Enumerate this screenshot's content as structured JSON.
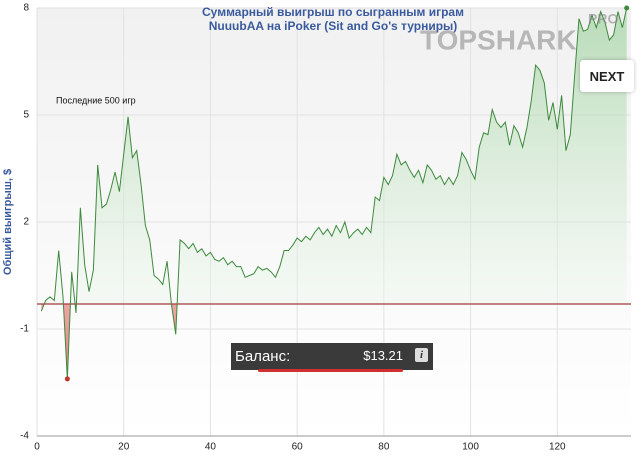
{
  "chart_data": {
    "type": "area",
    "title": "Суммарный выигрыш по сыгранным играм",
    "subtitle": "NuuubAA на iPoker (Sit and Go's турниры)",
    "y_label": "Общий выигрыш, $",
    "annotation": "Последние 500 игр",
    "x": [
      1,
      2,
      3,
      4,
      5,
      6,
      7,
      8,
      9,
      10,
      11,
      12,
      13,
      14,
      15,
      16,
      17,
      18,
      19,
      20,
      21,
      22,
      23,
      24,
      25,
      26,
      27,
      28,
      29,
      30,
      31,
      32,
      33,
      34,
      35,
      36,
      37,
      38,
      39,
      40,
      41,
      42,
      43,
      44,
      45,
      46,
      47,
      48,
      49,
      50,
      51,
      52,
      53,
      54,
      55,
      56,
      57,
      58,
      59,
      60,
      61,
      62,
      63,
      64,
      65,
      66,
      67,
      68,
      69,
      70,
      71,
      72,
      73,
      74,
      75,
      76,
      77,
      78,
      79,
      80,
      81,
      82,
      83,
      84,
      85,
      86,
      87,
      88,
      89,
      90,
      91,
      92,
      93,
      94,
      95,
      96,
      97,
      98,
      99,
      100,
      101,
      102,
      103,
      104,
      105,
      106,
      107,
      108,
      109,
      110,
      111,
      112,
      113,
      114,
      115,
      116,
      117,
      118,
      119,
      120,
      121,
      122,
      123,
      124,
      125,
      126,
      127,
      128,
      129,
      130,
      131,
      132,
      133,
      134,
      135,
      136
    ],
    "values": [
      -0.5,
      -0.2,
      -0.1,
      -0.2,
      1.2,
      -0.1,
      -2.4,
      0.6,
      -0.55,
      2.4,
      0.8,
      0.05,
      0.65,
      3.6,
      2.4,
      2.5,
      2.9,
      3.4,
      2.85,
      3.9,
      4.95,
      3.8,
      4.0,
      3.05,
      1.9,
      1.5,
      0.5,
      0.4,
      0.25,
      0.9,
      -0.3,
      -1.15,
      1.5,
      1.4,
      1.25,
      1.4,
      1.15,
      1.25,
      1.05,
      1.15,
      0.95,
      0.9,
      1.0,
      0.8,
      0.9,
      0.75,
      0.75,
      0.45,
      0.5,
      0.55,
      0.75,
      0.65,
      0.7,
      0.6,
      0.45,
      0.75,
      1.2,
      1.2,
      1.35,
      1.55,
      1.45,
      1.6,
      1.5,
      1.7,
      1.85,
      1.65,
      1.8,
      1.6,
      1.9,
      1.7,
      2.0,
      1.55,
      1.7,
      1.8,
      1.65,
      1.85,
      1.7,
      2.7,
      2.6,
      3.25,
      3.05,
      3.3,
      3.9,
      3.6,
      3.7,
      3.45,
      3.25,
      3.45,
      3.1,
      3.6,
      3.45,
      3.2,
      3.3,
      3.05,
      3.25,
      3.05,
      3.3,
      3.95,
      3.75,
      3.45,
      3.2,
      4.1,
      4.5,
      4.45,
      5.15,
      4.8,
      4.65,
      4.8,
      4.15,
      4.7,
      4.5,
      4.1,
      4.65,
      5.4,
      6.4,
      6.25,
      5.9,
      4.85,
      5.35,
      4.6,
      5.55,
      4.0,
      4.45,
      6.1,
      7.7,
      7.35,
      7.4,
      7.8,
      7.45,
      7.9,
      7.6,
      7.1,
      7.25,
      7.9,
      7.45,
      8.0
    ],
    "color": "#3d8a3d",
    "negative_color": "#c0392b",
    "baseline": -0.3,
    "baseline_color": "#a33a3a",
    "xlim": [
      0,
      137
    ],
    "ylim": [
      -4,
      8
    ],
    "xticks": [
      0,
      20,
      40,
      60,
      80,
      100,
      120
    ],
    "yticks": [
      -4,
      -1,
      2,
      5,
      8
    ],
    "grid": true
  },
  "ui": {
    "balance_label": "Баланс:",
    "balance_value": "$13.21",
    "info_icon": "i",
    "next_button": "NEXT",
    "logo": "TOPSHARK",
    "logo_badge": "PRO"
  }
}
